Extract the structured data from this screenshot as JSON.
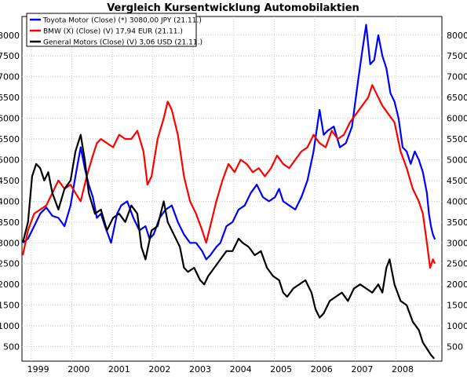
{
  "chart_data": {
    "type": "line",
    "title": "Vergleich Kursentwicklung Automobilaktien",
    "xlabel": "",
    "ylabel": "",
    "x_range": [
      1998.6,
      2008.97
    ],
    "ylim": [
      150,
      8450
    ],
    "y_ticks": [
      500,
      1000,
      1500,
      2000,
      2500,
      3000,
      3500,
      4000,
      4500,
      5000,
      5500,
      6000,
      6500,
      7000,
      7500,
      8000
    ],
    "x_tick_labels": [
      {
        "label": "1999",
        "x": 1999
      },
      {
        "label": "2000",
        "x": 2000
      },
      {
        "label": "2001",
        "x": 2001
      },
      {
        "label": "2002",
        "x": 2002
      },
      {
        "label": "2003",
        "x": 2003
      },
      {
        "label": "2004",
        "x": 2004
      },
      {
        "label": "2005",
        "x": 2005
      },
      {
        "label": "2006",
        "x": 2006
      },
      {
        "label": "2007",
        "x": 2007
      },
      {
        "label": "2008",
        "x": 2008
      }
    ],
    "grid": true,
    "legend_position": "top-left",
    "series": [
      {
        "name": "Toyota Motor (Close) (*) 3080,00 JPY (21.11.)",
        "color": "#0000ff",
        "points": [
          [
            1998.62,
            3000
          ],
          [
            1998.75,
            3100
          ],
          [
            1998.9,
            3400
          ],
          [
            1999.05,
            3700
          ],
          [
            1999.2,
            3850
          ],
          [
            1999.35,
            3650
          ],
          [
            1999.5,
            3600
          ],
          [
            1999.65,
            3400
          ],
          [
            1999.8,
            3900
          ],
          [
            1999.92,
            4600
          ],
          [
            2000.05,
            5300
          ],
          [
            2000.15,
            4800
          ],
          [
            2000.25,
            4400
          ],
          [
            2000.35,
            4100
          ],
          [
            2000.45,
            3600
          ],
          [
            2000.55,
            3700
          ],
          [
            2000.65,
            3400
          ],
          [
            2000.8,
            3000
          ],
          [
            2000.95,
            3700
          ],
          [
            2001.05,
            3900
          ],
          [
            2001.2,
            4000
          ],
          [
            2001.35,
            3600
          ],
          [
            2001.5,
            3300
          ],
          [
            2001.65,
            3400
          ],
          [
            2001.75,
            3100
          ],
          [
            2001.85,
            3200
          ],
          [
            2002.0,
            3600
          ],
          [
            2002.15,
            3800
          ],
          [
            2002.3,
            3900
          ],
          [
            2002.45,
            3500
          ],
          [
            2002.6,
            3200
          ],
          [
            2002.75,
            3000
          ],
          [
            2002.9,
            3000
          ],
          [
            2003.05,
            2800
          ],
          [
            2003.15,
            2600
          ],
          [
            2003.25,
            2700
          ],
          [
            2003.4,
            2900
          ],
          [
            2003.5,
            3000
          ],
          [
            2003.65,
            3400
          ],
          [
            2003.8,
            3500
          ],
          [
            2003.95,
            3800
          ],
          [
            2004.1,
            3900
          ],
          [
            2004.25,
            4200
          ],
          [
            2004.4,
            4400
          ],
          [
            2004.55,
            4100
          ],
          [
            2004.7,
            4000
          ],
          [
            2004.85,
            4100
          ],
          [
            2004.95,
            4300
          ],
          [
            2005.05,
            4000
          ],
          [
            2005.2,
            3900
          ],
          [
            2005.35,
            3800
          ],
          [
            2005.5,
            4100
          ],
          [
            2005.65,
            4500
          ],
          [
            2005.8,
            5200
          ],
          [
            2005.95,
            6200
          ],
          [
            2006.05,
            5600
          ],
          [
            2006.15,
            5700
          ],
          [
            2006.3,
            5800
          ],
          [
            2006.45,
            5300
          ],
          [
            2006.6,
            5400
          ],
          [
            2006.75,
            5800
          ],
          [
            2006.9,
            6900
          ],
          [
            2007.0,
            7600
          ],
          [
            2007.1,
            8250
          ],
          [
            2007.2,
            7300
          ],
          [
            2007.3,
            7400
          ],
          [
            2007.4,
            8000
          ],
          [
            2007.5,
            7500
          ],
          [
            2007.6,
            7200
          ],
          [
            2007.7,
            6600
          ],
          [
            2007.8,
            6400
          ],
          [
            2007.9,
            6000
          ],
          [
            2008.0,
            5300
          ],
          [
            2008.1,
            5200
          ],
          [
            2008.2,
            4900
          ],
          [
            2008.3,
            5200
          ],
          [
            2008.4,
            5000
          ],
          [
            2008.5,
            4700
          ],
          [
            2008.6,
            4200
          ],
          [
            2008.65,
            3700
          ],
          [
            2008.7,
            3400
          ],
          [
            2008.75,
            3200
          ],
          [
            2008.8,
            3080
          ]
        ]
      },
      {
        "name": "BMW (X) (Close) (V) 17,94 EUR (21.11.)",
        "color": "#ff0000",
        "points": [
          [
            1998.62,
            2700
          ],
          [
            1998.75,
            3300
          ],
          [
            1998.9,
            3700
          ],
          [
            1999.05,
            3800
          ],
          [
            1999.2,
            3900
          ],
          [
            1999.35,
            4200
          ],
          [
            1999.5,
            4500
          ],
          [
            1999.65,
            4300
          ],
          [
            1999.8,
            4400
          ],
          [
            1999.92,
            4200
          ],
          [
            2000.05,
            4000
          ],
          [
            2000.2,
            4600
          ],
          [
            2000.35,
            5100
          ],
          [
            2000.45,
            5400
          ],
          [
            2000.55,
            5500
          ],
          [
            2000.7,
            5400
          ],
          [
            2000.85,
            5300
          ],
          [
            2001.0,
            5600
          ],
          [
            2001.15,
            5500
          ],
          [
            2001.3,
            5500
          ],
          [
            2001.45,
            5700
          ],
          [
            2001.6,
            5200
          ],
          [
            2001.7,
            4400
          ],
          [
            2001.8,
            4600
          ],
          [
            2001.95,
            5500
          ],
          [
            2002.1,
            6000
          ],
          [
            2002.2,
            6400
          ],
          [
            2002.3,
            6200
          ],
          [
            2002.45,
            5600
          ],
          [
            2002.6,
            4600
          ],
          [
            2002.75,
            4000
          ],
          [
            2002.9,
            3700
          ],
          [
            2003.05,
            3300
          ],
          [
            2003.15,
            3000
          ],
          [
            2003.25,
            3400
          ],
          [
            2003.4,
            4000
          ],
          [
            2003.55,
            4500
          ],
          [
            2003.7,
            4900
          ],
          [
            2003.85,
            4700
          ],
          [
            2004.0,
            5000
          ],
          [
            2004.15,
            4900
          ],
          [
            2004.3,
            4700
          ],
          [
            2004.45,
            4800
          ],
          [
            2004.6,
            4600
          ],
          [
            2004.75,
            4800
          ],
          [
            2004.9,
            5100
          ],
          [
            2005.05,
            4900
          ],
          [
            2005.2,
            4800
          ],
          [
            2005.35,
            5000
          ],
          [
            2005.5,
            5200
          ],
          [
            2005.65,
            5300
          ],
          [
            2005.8,
            5600
          ],
          [
            2005.95,
            5400
          ],
          [
            2006.1,
            5300
          ],
          [
            2006.25,
            5700
          ],
          [
            2006.4,
            5500
          ],
          [
            2006.55,
            5600
          ],
          [
            2006.7,
            5900
          ],
          [
            2006.85,
            6100
          ],
          [
            2007.0,
            6300
          ],
          [
            2007.15,
            6500
          ],
          [
            2007.25,
            6800
          ],
          [
            2007.35,
            6600
          ],
          [
            2007.5,
            6300
          ],
          [
            2007.65,
            6100
          ],
          [
            2007.8,
            5900
          ],
          [
            2007.95,
            5200
          ],
          [
            2008.1,
            4800
          ],
          [
            2008.25,
            4300
          ],
          [
            2008.4,
            4000
          ],
          [
            2008.5,
            3700
          ],
          [
            2008.6,
            3000
          ],
          [
            2008.68,
            2400
          ],
          [
            2008.75,
            2600
          ],
          [
            2008.8,
            2500
          ]
        ]
      },
      {
        "name": "General Motors (Close) (V) 3,06 USD (21.11.)",
        "color": "#000000",
        "points": [
          [
            1998.62,
            3000
          ],
          [
            1998.75,
            3500
          ],
          [
            1998.85,
            4600
          ],
          [
            1998.95,
            4900
          ],
          [
            1999.05,
            4800
          ],
          [
            1999.15,
            4500
          ],
          [
            1999.25,
            4700
          ],
          [
            1999.35,
            4200
          ],
          [
            1999.5,
            3800
          ],
          [
            1999.65,
            4300
          ],
          [
            1999.8,
            4500
          ],
          [
            1999.92,
            5200
          ],
          [
            2000.05,
            5600
          ],
          [
            2000.15,
            5000
          ],
          [
            2000.25,
            4200
          ],
          [
            2000.4,
            3700
          ],
          [
            2000.55,
            3800
          ],
          [
            2000.7,
            3300
          ],
          [
            2000.85,
            3600
          ],
          [
            2001.0,
            3700
          ],
          [
            2001.15,
            3500
          ],
          [
            2001.3,
            3900
          ],
          [
            2001.45,
            3700
          ],
          [
            2001.55,
            2900
          ],
          [
            2001.65,
            2600
          ],
          [
            2001.8,
            3300
          ],
          [
            2001.95,
            3400
          ],
          [
            2002.1,
            4000
          ],
          [
            2002.2,
            3500
          ],
          [
            2002.35,
            3200
          ],
          [
            2002.5,
            2900
          ],
          [
            2002.6,
            2400
          ],
          [
            2002.7,
            2300
          ],
          [
            2002.85,
            2400
          ],
          [
            2003.0,
            2100
          ],
          [
            2003.1,
            2000
          ],
          [
            2003.2,
            2200
          ],
          [
            2003.35,
            2400
          ],
          [
            2003.5,
            2600
          ],
          [
            2003.65,
            2800
          ],
          [
            2003.8,
            2800
          ],
          [
            2003.95,
            3100
          ],
          [
            2004.05,
            3000
          ],
          [
            2004.2,
            2900
          ],
          [
            2004.35,
            2700
          ],
          [
            2004.5,
            2800
          ],
          [
            2004.65,
            2400
          ],
          [
            2004.8,
            2200
          ],
          [
            2004.95,
            2100
          ],
          [
            2005.05,
            1800
          ],
          [
            2005.15,
            1700
          ],
          [
            2005.3,
            1900
          ],
          [
            2005.45,
            2000
          ],
          [
            2005.6,
            2100
          ],
          [
            2005.75,
            1800
          ],
          [
            2005.85,
            1400
          ],
          [
            2005.95,
            1200
          ],
          [
            2006.05,
            1300
          ],
          [
            2006.2,
            1600
          ],
          [
            2006.35,
            1700
          ],
          [
            2006.5,
            1800
          ],
          [
            2006.65,
            1600
          ],
          [
            2006.8,
            1900
          ],
          [
            2006.95,
            2000
          ],
          [
            2007.1,
            1900
          ],
          [
            2007.25,
            1800
          ],
          [
            2007.4,
            2000
          ],
          [
            2007.5,
            1800
          ],
          [
            2007.6,
            2400
          ],
          [
            2007.68,
            2600
          ],
          [
            2007.8,
            2000
          ],
          [
            2007.95,
            1600
          ],
          [
            2008.1,
            1500
          ],
          [
            2008.25,
            1100
          ],
          [
            2008.4,
            900
          ],
          [
            2008.5,
            600
          ],
          [
            2008.6,
            450
          ],
          [
            2008.7,
            300
          ],
          [
            2008.78,
            210
          ]
        ]
      }
    ]
  }
}
